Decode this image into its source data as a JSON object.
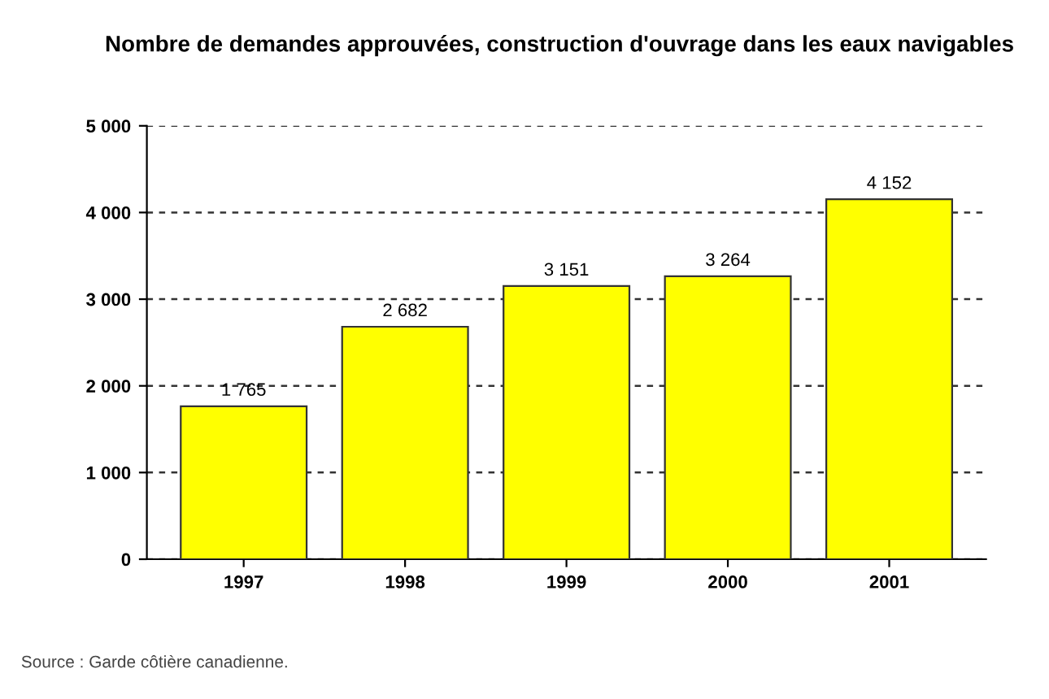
{
  "chart_data": {
    "type": "bar",
    "title": "Nombre de demandes approuvées, construction d'ouvrage dans les eaux navigables",
    "categories": [
      "1997",
      "1998",
      "1999",
      "2000",
      "2001"
    ],
    "values": [
      1765,
      2682,
      3151,
      3264,
      4152
    ],
    "value_labels": [
      "1 765",
      "2 682",
      "3 151",
      "3 264",
      "4 152"
    ],
    "color": "#ffff00",
    "ylim": [
      0,
      5000
    ],
    "yticks": [
      {
        "value": 0,
        "label": "0"
      },
      {
        "value": 1000,
        "label": "1 000"
      },
      {
        "value": 2000,
        "label": "2 000"
      },
      {
        "value": 3000,
        "label": "3 000"
      },
      {
        "value": 4000,
        "label": "4 000"
      },
      {
        "value": 5000,
        "label": "5 000"
      }
    ],
    "grid": "y",
    "annotations": [
      "Source : Garde côtière canadienne."
    ]
  }
}
